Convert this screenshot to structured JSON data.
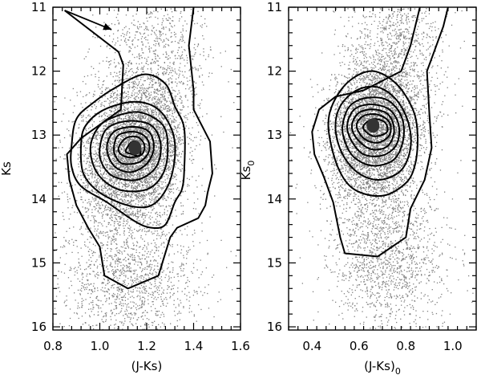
{
  "chart_data": [
    {
      "type": "scatter",
      "xlabel": "(J-Ks)",
      "ylabel": "Ks",
      "xlim": [
        0.8,
        1.6
      ],
      "ylim": [
        16.05,
        11.0
      ],
      "y_inverted": true,
      "x_ticks": [
        0.8,
        1.0,
        1.2,
        1.4,
        1.6
      ],
      "x_tick_labels": [
        "0.8",
        "1.0",
        "1.2",
        "1.4",
        "1.6"
      ],
      "y_ticks": [
        11,
        12,
        13,
        14,
        15,
        16
      ],
      "y_tick_labels": [
        "11",
        "12",
        "13",
        "14",
        "15",
        "16"
      ],
      "grid": false,
      "point_color": "#808080",
      "density_peak": {
        "x": 1.15,
        "y": 13.2
      },
      "annotation_arrow": {
        "from": [
          0.85,
          11.05
        ],
        "to": [
          1.05,
          11.35
        ]
      },
      "contour_levels": [
        {
          "level": 1,
          "points": [
            [
              0.85,
              11.05
            ],
            [
              1.08,
              11.7
            ],
            [
              1.1,
              11.9
            ],
            [
              1.09,
              12.6
            ],
            [
              0.92,
              13.05
            ],
            [
              0.86,
              13.3
            ],
            [
              0.87,
              13.7
            ],
            [
              0.9,
              14.1
            ],
            [
              0.95,
              14.45
            ],
            [
              1.0,
              14.75
            ],
            [
              1.02,
              15.2
            ],
            [
              1.12,
              15.4
            ],
            [
              1.25,
              15.2
            ],
            [
              1.3,
              14.6
            ],
            [
              1.33,
              14.45
            ],
            [
              1.42,
              14.3
            ],
            [
              1.45,
              14.1
            ],
            [
              1.46,
              13.9
            ],
            [
              1.48,
              13.6
            ],
            [
              1.47,
              13.1
            ],
            [
              1.4,
              12.6
            ],
            [
              1.4,
              12.3
            ],
            [
              1.38,
              11.6
            ],
            [
              1.4,
              11.0
            ]
          ]
        },
        {
          "level": 2,
          "points": [
            [
              0.88,
              13.15
            ],
            [
              0.9,
              12.75
            ],
            [
              0.97,
              12.5
            ],
            [
              1.07,
              12.25
            ],
            [
              1.19,
              12.05
            ],
            [
              1.28,
              12.2
            ],
            [
              1.32,
              12.55
            ],
            [
              1.36,
              12.9
            ],
            [
              1.36,
              13.55
            ],
            [
              1.35,
              13.85
            ],
            [
              1.32,
              14.05
            ],
            [
              1.28,
              14.4
            ],
            [
              1.22,
              14.45
            ],
            [
              1.15,
              14.35
            ],
            [
              1.03,
              14.05
            ],
            [
              0.92,
              13.8
            ],
            [
              0.88,
              13.5
            ]
          ]
        },
        {
          "level": 3,
          "points": [
            [
              0.92,
              13.15
            ],
            [
              0.94,
              12.85
            ],
            [
              1.02,
              12.6
            ],
            [
              1.15,
              12.48
            ],
            [
              1.25,
              12.6
            ],
            [
              1.31,
              12.95
            ],
            [
              1.32,
              13.35
            ],
            [
              1.29,
              13.8
            ],
            [
              1.22,
              14.1
            ],
            [
              1.12,
              14.1
            ],
            [
              1.0,
              13.9
            ],
            [
              0.93,
              13.6
            ]
          ]
        },
        {
          "level": 4,
          "points": [
            [
              0.96,
              13.2
            ],
            [
              1.0,
              12.85
            ],
            [
              1.09,
              12.68
            ],
            [
              1.18,
              12.65
            ],
            [
              1.27,
              12.85
            ],
            [
              1.29,
              13.2
            ],
            [
              1.27,
              13.6
            ],
            [
              1.2,
              13.85
            ],
            [
              1.08,
              13.85
            ],
            [
              0.99,
              13.6
            ]
          ]
        },
        {
          "level": 5,
          "points": [
            [
              1.0,
              13.2
            ],
            [
              1.03,
              12.9
            ],
            [
              1.12,
              12.78
            ],
            [
              1.22,
              12.85
            ],
            [
              1.26,
              13.15
            ],
            [
              1.24,
              13.5
            ],
            [
              1.16,
              13.7
            ],
            [
              1.06,
              13.65
            ],
            [
              1.01,
              13.45
            ]
          ]
        },
        {
          "level": 6,
          "points": [
            [
              1.03,
              13.2
            ],
            [
              1.06,
              12.95
            ],
            [
              1.14,
              12.87
            ],
            [
              1.21,
              12.95
            ],
            [
              1.23,
              13.2
            ],
            [
              1.2,
              13.45
            ],
            [
              1.13,
              13.58
            ],
            [
              1.06,
              13.48
            ]
          ]
        },
        {
          "level": 7,
          "points": [
            [
              1.06,
              13.2
            ],
            [
              1.08,
              13.0
            ],
            [
              1.15,
              12.95
            ],
            [
              1.2,
              13.05
            ],
            [
              1.21,
              13.25
            ],
            [
              1.17,
              13.42
            ],
            [
              1.1,
              13.45
            ],
            [
              1.07,
              13.35
            ]
          ]
        },
        {
          "level": 8,
          "points": [
            [
              1.08,
              13.2
            ],
            [
              1.11,
              13.05
            ],
            [
              1.16,
              13.03
            ],
            [
              1.19,
              13.15
            ],
            [
              1.18,
              13.3
            ],
            [
              1.13,
              13.35
            ],
            [
              1.09,
              13.3
            ]
          ]
        },
        {
          "level": 9,
          "points": [
            [
              1.11,
              13.25
            ],
            [
              1.14,
              13.1
            ],
            [
              1.17,
              13.15
            ],
            [
              1.17,
              13.32
            ],
            [
              1.14,
              13.3
            ]
          ]
        }
      ]
    },
    {
      "type": "scatter",
      "xlabel": "(J-Ks)",
      "xlabel_subscript": "0",
      "ylabel": "Ks",
      "ylabel_subscript": "0",
      "xlim": [
        0.3,
        1.1
      ],
      "ylim": [
        16.05,
        11.0
      ],
      "y_inverted": true,
      "x_ticks": [
        0.4,
        0.6,
        0.8,
        1.0
      ],
      "x_tick_labels": [
        "0.4",
        "0.6",
        "0.8",
        "1.0"
      ],
      "y_ticks": [
        11,
        12,
        13,
        14,
        15,
        16
      ],
      "y_tick_labels": [
        "11",
        "12",
        "13",
        "14",
        "15",
        "16"
      ],
      "grid": false,
      "point_color": "#808080",
      "density_peak": {
        "x": 0.66,
        "y": 12.85
      },
      "contour_levels": [
        {
          "level": 1,
          "points": [
            [
              0.86,
              11.0
            ],
            [
              0.82,
              11.6
            ],
            [
              0.78,
              12.0
            ],
            [
              0.62,
              12.3
            ],
            [
              0.5,
              12.4
            ],
            [
              0.43,
              12.6
            ],
            [
              0.4,
              12.95
            ],
            [
              0.41,
              13.3
            ],
            [
              0.45,
              13.65
            ],
            [
              0.49,
              14.05
            ],
            [
              0.52,
              14.6
            ],
            [
              0.54,
              14.85
            ],
            [
              0.68,
              14.9
            ],
            [
              0.8,
              14.6
            ],
            [
              0.82,
              14.15
            ],
            [
              0.88,
              13.7
            ],
            [
              0.91,
              13.2
            ],
            [
              0.9,
              12.65
            ],
            [
              0.89,
              12.0
            ],
            [
              0.92,
              11.7
            ],
            [
              0.96,
              11.3
            ],
            [
              0.98,
              11.0
            ]
          ]
        },
        {
          "level": 2,
          "points": [
            [
              0.47,
              12.9
            ],
            [
              0.49,
              12.5
            ],
            [
              0.56,
              12.15
            ],
            [
              0.66,
              12.0
            ],
            [
              0.76,
              12.2
            ],
            [
              0.83,
              12.6
            ],
            [
              0.85,
              13.0
            ],
            [
              0.84,
              13.45
            ],
            [
              0.8,
              13.75
            ],
            [
              0.7,
              13.95
            ],
            [
              0.58,
              13.85
            ],
            [
              0.51,
              13.5
            ]
          ]
        },
        {
          "level": 3,
          "points": [
            [
              0.5,
              12.9
            ],
            [
              0.52,
              12.55
            ],
            [
              0.59,
              12.3
            ],
            [
              0.68,
              12.25
            ],
            [
              0.76,
              12.45
            ],
            [
              0.81,
              12.8
            ],
            [
              0.82,
              13.2
            ],
            [
              0.78,
              13.55
            ],
            [
              0.69,
              13.7
            ],
            [
              0.6,
              13.6
            ],
            [
              0.53,
              13.3
            ]
          ]
        },
        {
          "level": 4,
          "points": [
            [
              0.53,
              12.85
            ],
            [
              0.56,
              12.55
            ],
            [
              0.63,
              12.42
            ],
            [
              0.72,
              12.45
            ],
            [
              0.78,
              12.7
            ],
            [
              0.79,
              13.05
            ],
            [
              0.75,
              13.38
            ],
            [
              0.66,
              13.48
            ],
            [
              0.58,
              13.35
            ],
            [
              0.54,
              13.1
            ]
          ]
        },
        {
          "level": 5,
          "points": [
            [
              0.55,
              12.85
            ],
            [
              0.58,
              12.6
            ],
            [
              0.65,
              12.52
            ],
            [
              0.73,
              12.6
            ],
            [
              0.77,
              12.85
            ],
            [
              0.76,
              13.15
            ],
            [
              0.7,
              13.32
            ],
            [
              0.62,
              13.3
            ],
            [
              0.57,
              13.1
            ]
          ]
        },
        {
          "level": 6,
          "points": [
            [
              0.57,
              12.85
            ],
            [
              0.6,
              12.65
            ],
            [
              0.67,
              12.6
            ],
            [
              0.73,
              12.7
            ],
            [
              0.75,
              12.95
            ],
            [
              0.72,
              13.18
            ],
            [
              0.65,
              13.22
            ],
            [
              0.59,
              13.05
            ]
          ]
        },
        {
          "level": 7,
          "points": [
            [
              0.59,
              12.85
            ],
            [
              0.62,
              12.7
            ],
            [
              0.68,
              12.68
            ],
            [
              0.73,
              12.8
            ],
            [
              0.73,
              13.0
            ],
            [
              0.68,
              13.12
            ],
            [
              0.62,
              13.05
            ]
          ]
        },
        {
          "level": 8,
          "points": [
            [
              0.62,
              12.85
            ],
            [
              0.66,
              12.75
            ],
            [
              0.71,
              12.8
            ],
            [
              0.72,
              12.95
            ],
            [
              0.67,
              13.02
            ],
            [
              0.63,
              12.95
            ]
          ]
        }
      ]
    }
  ]
}
